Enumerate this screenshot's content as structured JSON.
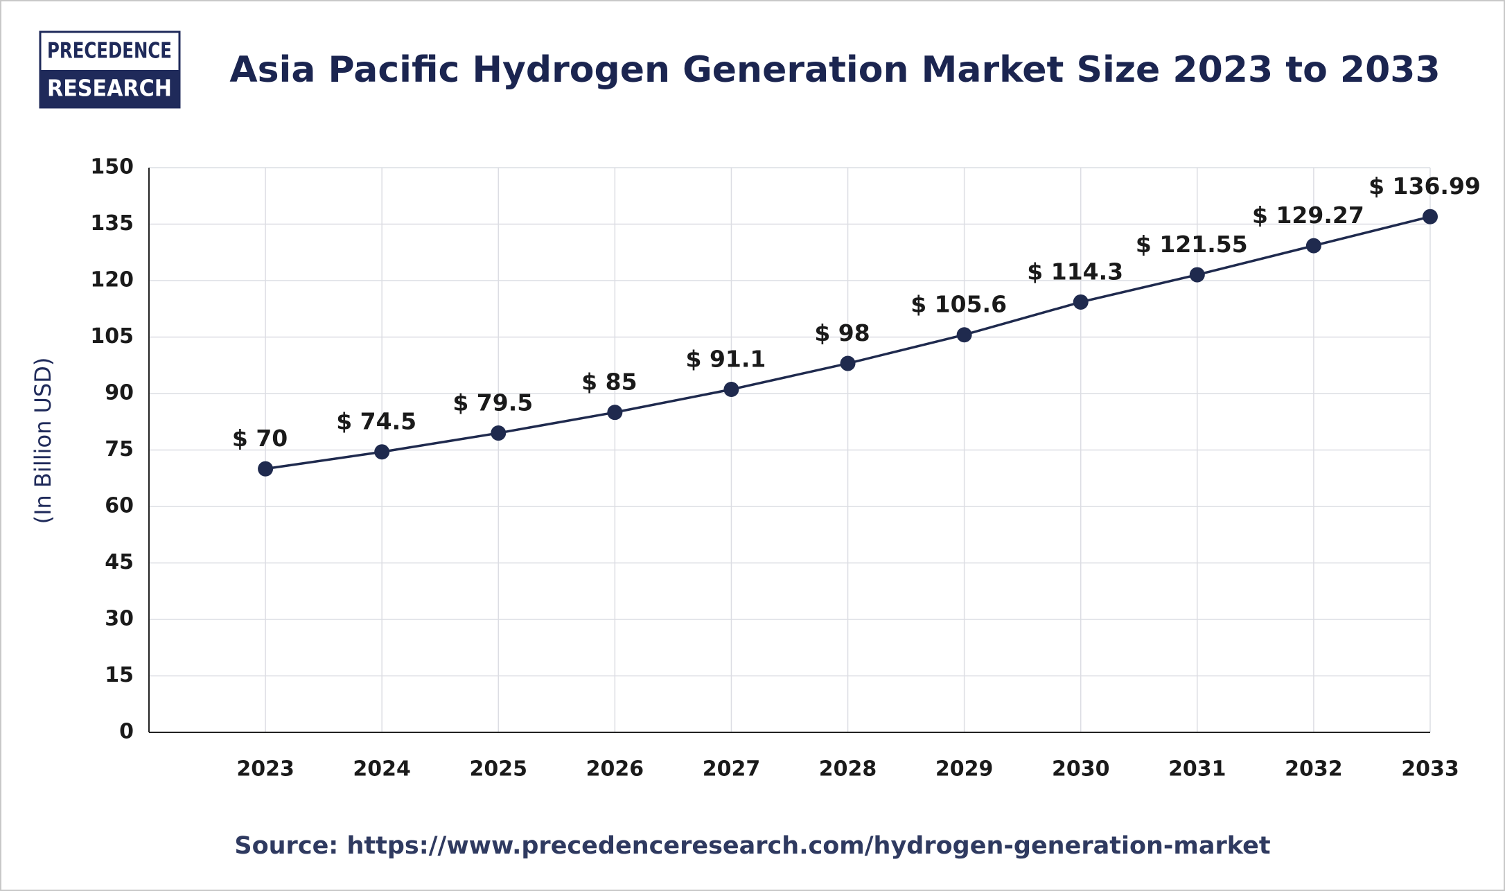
{
  "logo": {
    "line1": "PRECEDENCE",
    "line2": "RESEARCH"
  },
  "chart_data": {
    "type": "line",
    "title": "Asia Pacific Hydrogen Generation Market Size 2023 to 2033",
    "y_label": "(In Billion USD)",
    "source": "Source: https://www.precedenceresearch.com/hydrogen-generation-market",
    "categories": [
      "2023",
      "2024",
      "2025",
      "2026",
      "2027",
      "2028",
      "2029",
      "2030",
      "2031",
      "2032",
      "2033"
    ],
    "values": [
      70,
      74.5,
      79.5,
      85,
      91.1,
      98,
      105.6,
      114.3,
      121.55,
      129.27,
      136.99
    ],
    "value_labels": [
      "$ 70",
      "$ 74.5",
      "$ 79.5",
      "$ 85",
      "$ 91.1",
      "$ 98",
      "$ 105.6",
      "$ 114.3",
      "$ 121.55",
      "$ 129.27",
      "$ 136.99"
    ],
    "color": "#1f2a4e",
    "ylim": [
      0,
      150
    ],
    "yticks": [
      0,
      15,
      30,
      45,
      60,
      75,
      90,
      105,
      120,
      135,
      150
    ],
    "grid": true
  }
}
